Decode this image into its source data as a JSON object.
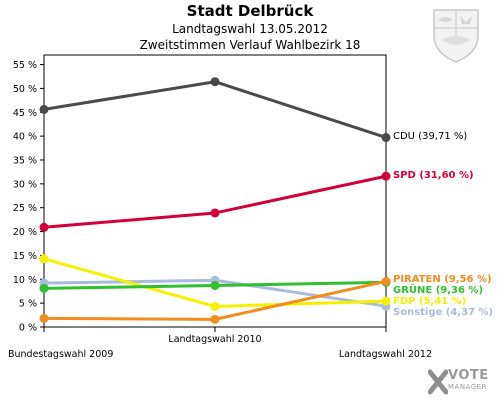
{
  "header": {
    "title": "Stadt Delbrück",
    "subtitle1": "Landtagswahl 13.05.2012",
    "subtitle2": "Zweitstimmen Verlauf Wahlbezirk 18"
  },
  "branding": {
    "brand": "VOTE",
    "sub": "MANAGER",
    "crest_icon": "nrw-coat-of-arms-icon",
    "logo_icon": "votemanager-x-icon"
  },
  "chart_data": {
    "type": "line",
    "title": "Stadt Delbrück",
    "categories": [
      "Bundestagswahl 2009",
      "Landtagswahl 2010",
      "Landtagswahl 2012"
    ],
    "ylim": [
      0,
      57
    ],
    "y_ticks": [
      0,
      5,
      10,
      15,
      20,
      25,
      30,
      35,
      40,
      45,
      50,
      55
    ],
    "y_tick_labels": [
      "0 %",
      "5 %",
      "10 %",
      "15 %",
      "20 %",
      "25 %",
      "30 %",
      "35 %",
      "40 %",
      "45 %",
      "50 %",
      "55 %"
    ],
    "grid": false,
    "legend": "end-labels",
    "series": [
      {
        "name": "CDU",
        "label": "CDU (39,71 %)",
        "color": "#4a4a4a",
        "values": [
          45.6,
          51.4,
          39.71
        ]
      },
      {
        "name": "SPD",
        "label": "SPD (31,60 %)",
        "color": "#d0003b",
        "values": [
          20.9,
          23.9,
          31.6
        ]
      },
      {
        "name": "PIRATEN",
        "label": "PIRATEN (9,56 %)",
        "color": "#f28c1e",
        "values": [
          1.8,
          1.6,
          9.56
        ]
      },
      {
        "name": "GRÜNE",
        "label": "GRÜNE (9,36 %)",
        "color": "#2fbf2f",
        "values": [
          8.1,
          8.7,
          9.36
        ]
      },
      {
        "name": "FDP",
        "label": "FDP (5,41 %)",
        "color": "#f4f000",
        "values": [
          14.3,
          4.3,
          5.41
        ]
      },
      {
        "name": "Sonstige",
        "label": "Sonstige (4,37 %)",
        "color": "#a9bbdc",
        "values": [
          9.2,
          9.8,
          4.37
        ]
      }
    ]
  }
}
